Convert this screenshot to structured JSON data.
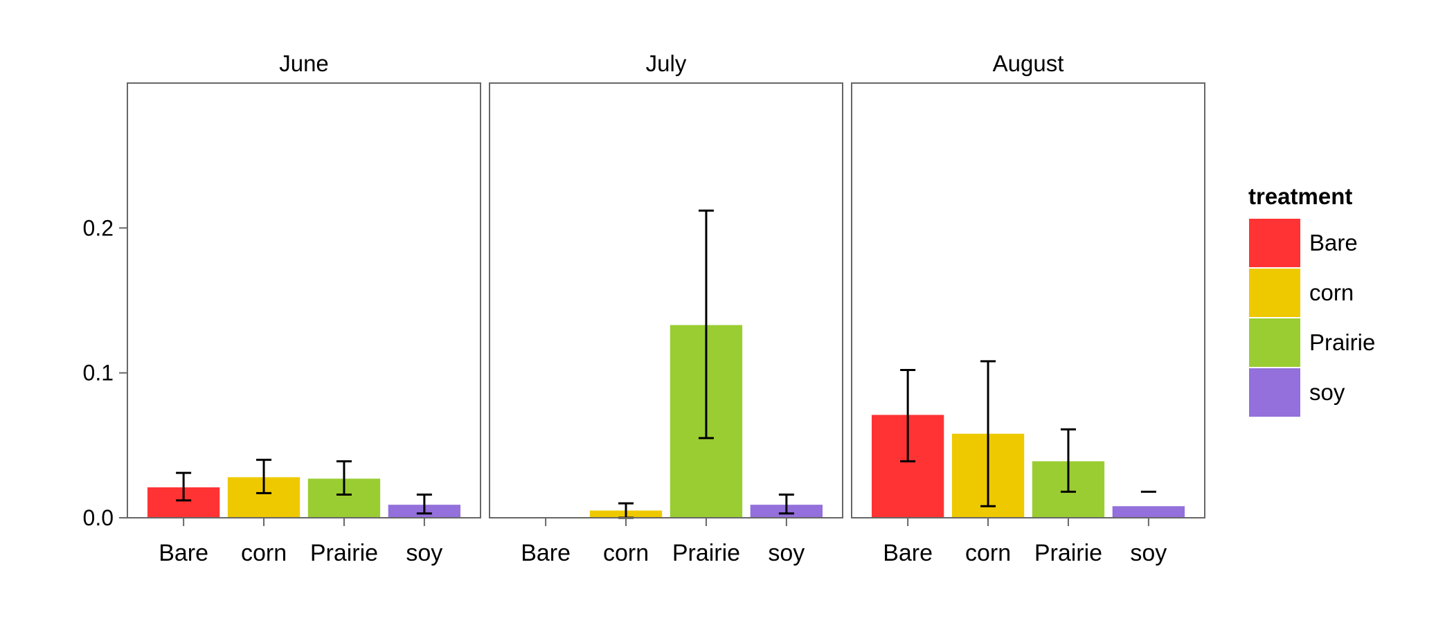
{
  "chart_data": {
    "type": "bar",
    "title": "",
    "xlabel": "",
    "ylabel": "",
    "ylim": [
      0,
      0.3
    ],
    "yticks": [
      "0.0",
      "0.1",
      "0.2"
    ],
    "ytick_values": [
      0,
      0.1,
      0.2
    ],
    "grid": false,
    "legend": {
      "title": "treatment",
      "position": "right"
    },
    "categories": [
      "Bare",
      "corn",
      "Prairie",
      "soy"
    ],
    "colors": {
      "Bare": "#FF3333",
      "corn": "#EEC900",
      "Prairie": "#9ACD32",
      "soy": "#9370DB"
    },
    "facets": [
      {
        "label": "June",
        "values": [
          0.021,
          0.028,
          0.027,
          0.009
        ],
        "error_low": [
          0.012,
          0.017,
          0.016,
          0.003
        ],
        "error_high": [
          0.031,
          0.04,
          0.039,
          0.016
        ]
      },
      {
        "label": "July",
        "values": [
          0,
          0.005,
          0.133,
          0.009
        ],
        "error_low": [
          0,
          0.0,
          0.055,
          0.003
        ],
        "error_high": [
          0,
          0.01,
          0.212,
          0.016
        ]
      },
      {
        "label": "August",
        "values": [
          0.071,
          0.058,
          0.039,
          0.008
        ],
        "error_low": [
          0.039,
          0.008,
          0.018,
          0.018
        ],
        "error_high": [
          0.102,
          0.108,
          0.061,
          0.018
        ]
      }
    ]
  }
}
